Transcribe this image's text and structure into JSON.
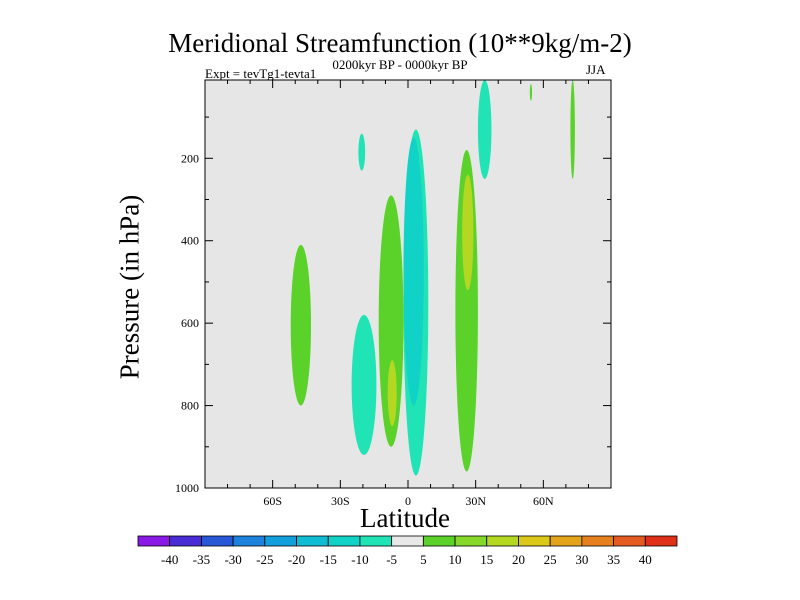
{
  "chart_data": {
    "type": "contour",
    "title": "Meridional Streamfunction (10**9kg/m-2)",
    "experiment": "Expt = tevTg1-tevta1",
    "period": "0200kyr BP - 0000kyr BP",
    "season": "JJA",
    "xlabel": "Latitude",
    "ylabel": "Pressure (in hPa)",
    "xlim": [
      -90,
      90
    ],
    "ylim": [
      1000,
      10
    ],
    "x_ticks": [
      {
        "value": -60,
        "label": "60S"
      },
      {
        "value": -30,
        "label": "30S"
      },
      {
        "value": 0,
        "label": "0"
      },
      {
        "value": 30,
        "label": "30N"
      },
      {
        "value": 60,
        "label": "60N"
      }
    ],
    "y_ticks": [
      {
        "value": 200,
        "label": "200"
      },
      {
        "value": 400,
        "label": "400"
      },
      {
        "value": 600,
        "label": "600"
      },
      {
        "value": 800,
        "label": "800"
      },
      {
        "value": 1000,
        "label": "1000"
      }
    ],
    "background_color": "#e6e6e6",
    "colorbar": {
      "labels": [
        "-40",
        "-35",
        "-30",
        "-25",
        "-20",
        "-15",
        "-10",
        "-5",
        "5",
        "10",
        "15",
        "20",
        "25",
        "30",
        "35",
        "40"
      ],
      "colors": [
        "#8a18e6",
        "#4a2cd6",
        "#2858d8",
        "#1c82dc",
        "#12a0dc",
        "#10bcd4",
        "#10d2c6",
        "#20e4b6",
        "#e8e8e8",
        "#5ad22a",
        "#86d82a",
        "#b4d822",
        "#dcc818",
        "#e4a41a",
        "#e6801e",
        "#e45a20",
        "#e03018"
      ]
    },
    "contour_features": [
      {
        "sign": "negative",
        "level": -5,
        "lat": [
          -22,
          -19
        ],
        "pressure": [
          140,
          230
        ]
      },
      {
        "sign": "negative",
        "level": -5,
        "lat": [
          -25,
          -14
        ],
        "pressure": [
          580,
          920
        ]
      },
      {
        "sign": "negative",
        "level": -5,
        "lat": [
          -2,
          9
        ],
        "pressure": [
          130,
          970
        ]
      },
      {
        "sign": "negative",
        "level": -10,
        "lat": [
          -2,
          7
        ],
        "pressure": [
          150,
          800
        ]
      },
      {
        "sign": "negative",
        "level": -5,
        "lat": [
          31,
          37
        ],
        "pressure": [
          10,
          250
        ]
      },
      {
        "sign": "positive",
        "level": 5,
        "lat": [
          -52,
          -43
        ],
        "pressure": [
          410,
          800
        ]
      },
      {
        "sign": "positive",
        "level": 5,
        "lat": [
          -13,
          -2
        ],
        "pressure": [
          290,
          900
        ]
      },
      {
        "sign": "positive",
        "level": 15,
        "lat": [
          -9,
          -5
        ],
        "pressure": [
          690,
          850
        ]
      },
      {
        "sign": "positive",
        "level": 5,
        "lat": [
          21,
          31
        ],
        "pressure": [
          180,
          960
        ]
      },
      {
        "sign": "positive",
        "level": 15,
        "lat": [
          24,
          29
        ],
        "pressure": [
          240,
          520
        ]
      },
      {
        "sign": "positive",
        "level": 5,
        "lat": [
          54,
          55
        ],
        "pressure": [
          20,
          60
        ]
      },
      {
        "sign": "positive",
        "level": 5,
        "lat": [
          72,
          74
        ],
        "pressure": [
          10,
          250
        ]
      }
    ]
  }
}
